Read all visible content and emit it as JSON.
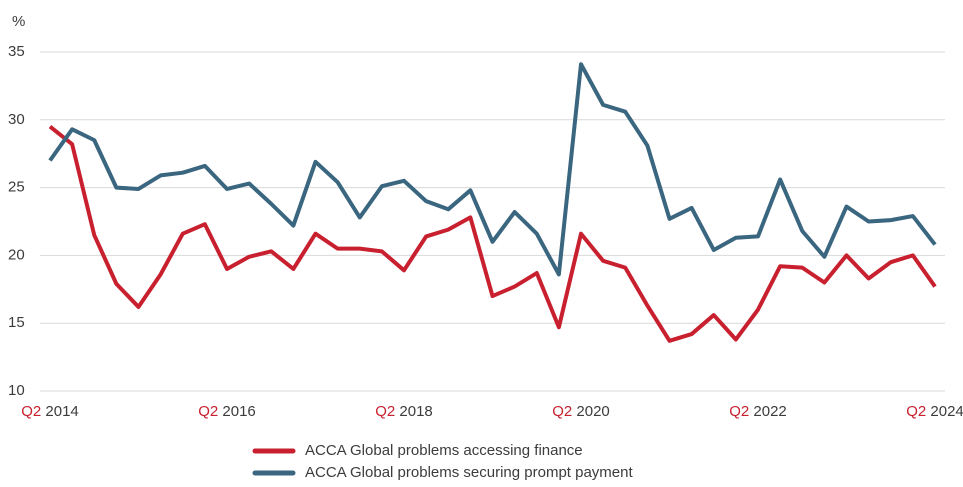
{
  "chart_data": {
    "type": "line",
    "y_label": "%",
    "categories": [
      "Q2 2014",
      null,
      null,
      null,
      null,
      null,
      null,
      null,
      "Q2 2016",
      null,
      null,
      null,
      null,
      null,
      null,
      null,
      "Q2 2018",
      null,
      null,
      null,
      null,
      null,
      null,
      null,
      "Q2 2020",
      null,
      null,
      null,
      null,
      null,
      null,
      null,
      "Q2 2022",
      null,
      null,
      null,
      null,
      null,
      null,
      null,
      "Q2 2024"
    ],
    "series": [
      {
        "name": "ACCA Global problems accessing finance",
        "color": "#c8202f",
        "values": [
          29.5,
          28.2,
          21.5,
          17.9,
          16.2,
          18.6,
          21.6,
          22.3,
          19.0,
          19.9,
          20.3,
          19.0,
          21.6,
          20.5,
          20.5,
          20.3,
          18.9,
          21.4,
          21.9,
          22.8,
          17.0,
          17.7,
          18.7,
          14.7,
          21.6,
          19.6,
          19.1,
          16.3,
          13.7,
          14.2,
          15.6,
          13.8,
          16.0,
          19.2,
          19.1,
          18.0,
          20.0,
          18.3,
          19.5,
          20.0,
          17.7
        ]
      },
      {
        "name": "ACCA Global problems securing prompt payment",
        "color": "#3a6680",
        "values": [
          27.0,
          29.3,
          28.5,
          25.0,
          24.9,
          25.9,
          26.1,
          26.6,
          24.9,
          25.3,
          23.8,
          22.2,
          26.9,
          25.4,
          22.8,
          25.1,
          25.5,
          24.0,
          23.4,
          24.8,
          21.0,
          23.2,
          21.6,
          18.6,
          34.1,
          31.1,
          30.6,
          28.1,
          22.7,
          23.5,
          20.4,
          21.3,
          21.4,
          25.6,
          21.8,
          19.9,
          23.6,
          22.5,
          22.6,
          22.9,
          20.8
        ]
      }
    ],
    "ylim": [
      10,
      35
    ],
    "yticks": [
      10,
      15,
      20,
      25,
      30,
      35
    ],
    "grid": true
  }
}
